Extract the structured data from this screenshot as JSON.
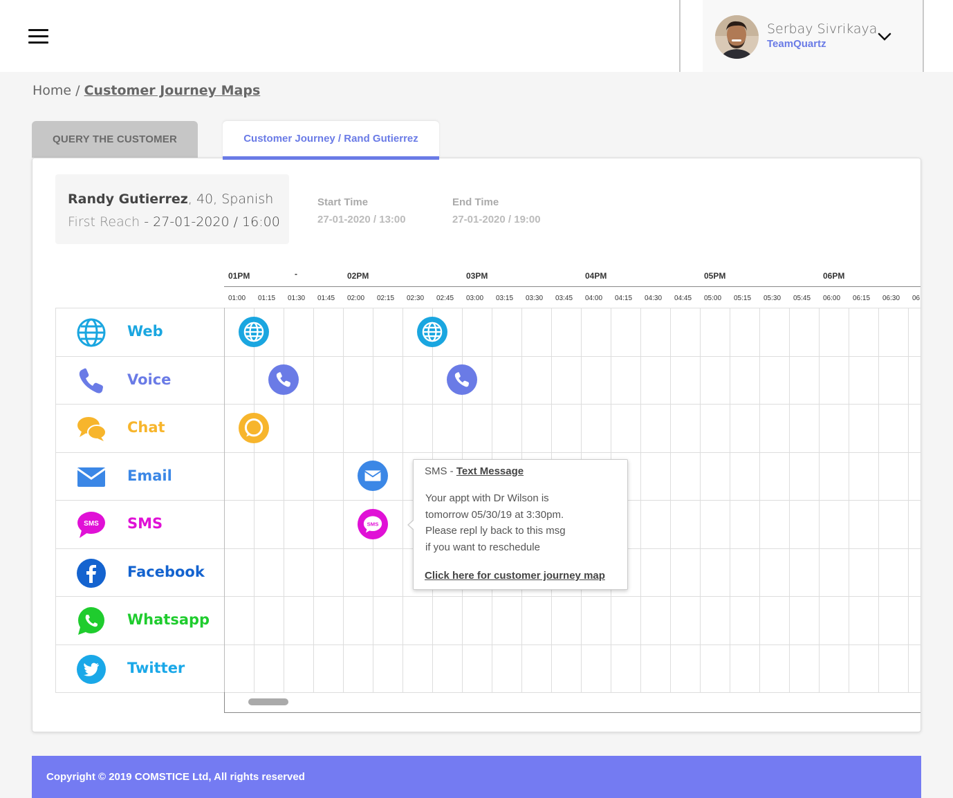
{
  "header": {
    "menu_icon": "hamburger-icon",
    "user_name": "Serbay Sivrikaya",
    "user_team": "TeamQuartz",
    "dropdown_icon": "chevron-down-icon"
  },
  "breadcrumb": {
    "home": "Home /",
    "current": "Customer Journey Maps"
  },
  "tabs": {
    "query": "QUERY THE CUSTOMER",
    "journey": "Customer Journey / Rand Gutierrez"
  },
  "customer": {
    "name": "Randy Gutierrez",
    "details": ", 40, Spanish",
    "first_reach_label": "First Reach",
    "first_reach_value": " - 27-01-2020 / 16:00"
  },
  "times": {
    "start_label": "Start Time",
    "start_value": "27-01-2020 / 13:00",
    "end_label": "End Time",
    "end_value": "27-01-2020 / 19:00"
  },
  "timeline": {
    "hours": [
      "01PM",
      "02PM",
      "03PM",
      "04PM",
      "05PM",
      "06PM"
    ],
    "quarters": [
      "01:00",
      "01:15",
      "01:30",
      "01:45",
      "02:00",
      "02:15",
      "02:30",
      "02:45",
      "03:00",
      "03:15",
      "03:30",
      "03:45",
      "04:00",
      "04:15",
      "04:30",
      "04:45",
      "05:00",
      "05:15",
      "05:30",
      "05:45",
      "06:00",
      "06:15",
      "06:30",
      "06"
    ],
    "marker": "-"
  },
  "channels": [
    {
      "label": "Web",
      "icon": "globe-icon",
      "color": "#1aa6e0"
    },
    {
      "label": "Voice",
      "icon": "phone-icon",
      "color": "#6a7be6"
    },
    {
      "label": "Chat",
      "icon": "chat-bubbles-icon",
      "color": "#f7b52c"
    },
    {
      "label": "Email",
      "icon": "envelope-icon",
      "color": "#3b87e6"
    },
    {
      "label": "SMS",
      "icon": "sms-icon",
      "color": "#e011d6"
    },
    {
      "label": "Facebook",
      "icon": "facebook-icon",
      "color": "#1463cf"
    },
    {
      "label": "Whatsapp",
      "icon": "whatsapp-icon",
      "color": "#1fcc2e"
    },
    {
      "label": "Twitter",
      "icon": "twitter-icon",
      "color": "#1aa8e8"
    }
  ],
  "events": [
    {
      "channel": "Web",
      "time": "01:15"
    },
    {
      "channel": "Web",
      "time": "02:45"
    },
    {
      "channel": "Voice",
      "time": "01:30"
    },
    {
      "channel": "Voice",
      "time": "03:00"
    },
    {
      "channel": "Chat",
      "time": "01:15"
    },
    {
      "channel": "Email",
      "time": "02:15"
    },
    {
      "channel": "SMS",
      "time": "02:15"
    }
  ],
  "tooltip": {
    "channel": "SMS -",
    "type": "Text Message",
    "lines": [
      "Your appt with Dr Wilson is",
      "tomorrow 05/30/19 at 3:30pm.",
      "Please repl ly back to this msg",
      "if you want to reschedule"
    ],
    "link": "Click here for customer journey map"
  },
  "footer": {
    "copyright": "Copyright © 2019 COMSTICE Ltd, All rights reserved"
  }
}
